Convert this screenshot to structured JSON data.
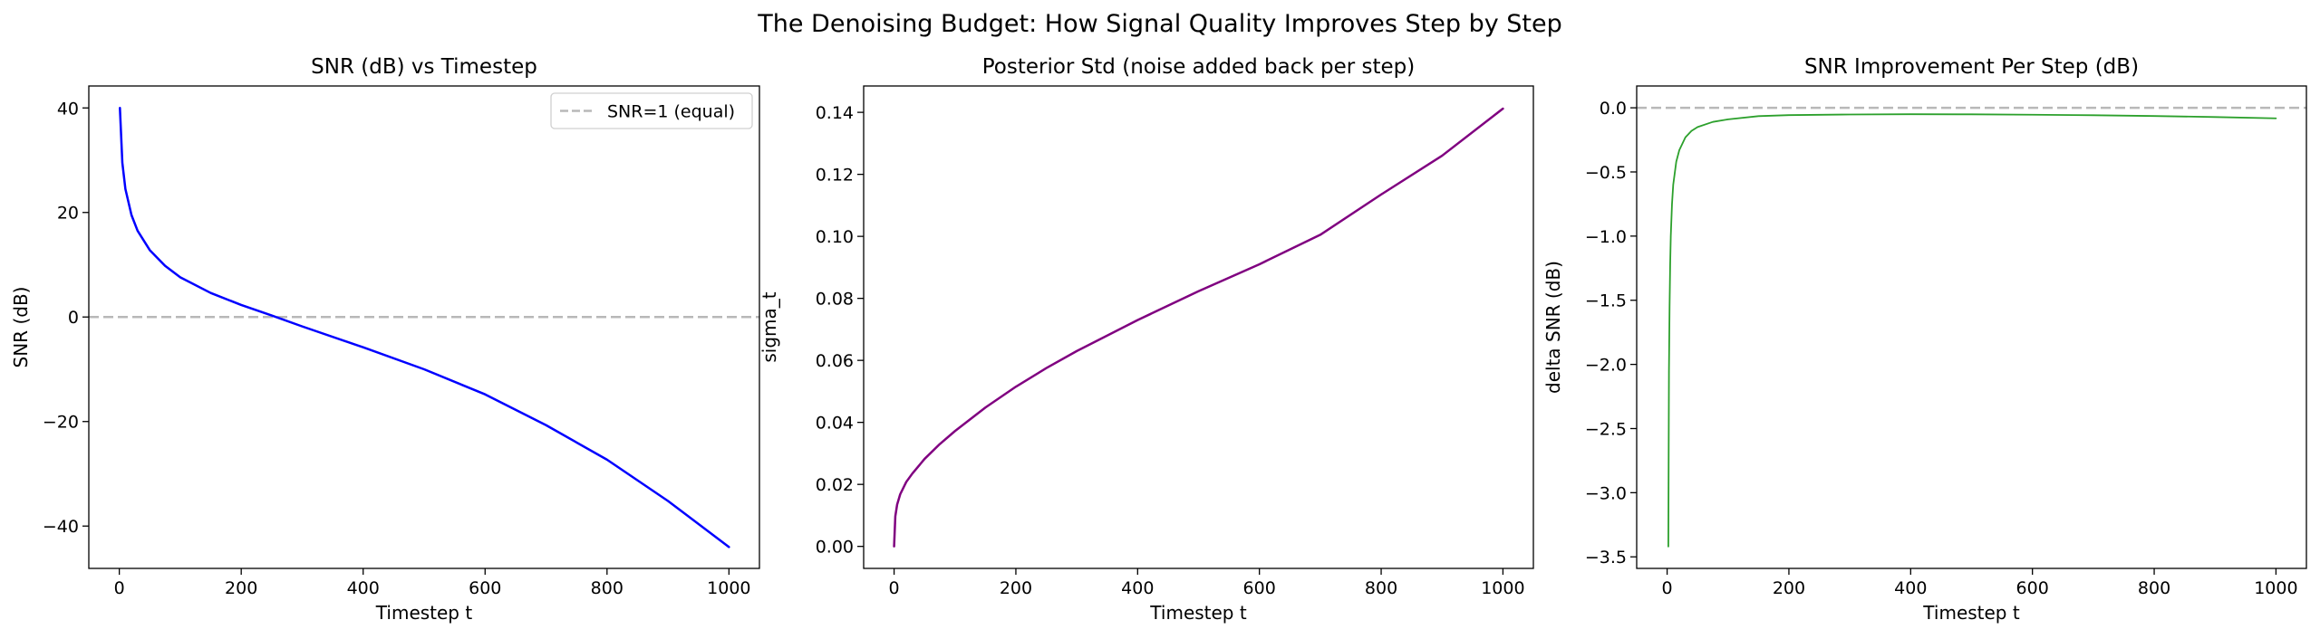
{
  "suptitle": "The Denoising Budget: How Signal Quality Improves Step by Step",
  "chart_data": [
    {
      "type": "line",
      "title": "SNR (dB) vs Timestep",
      "xlabel": "Timestep t",
      "ylabel": "SNR (dB)",
      "xlim": [
        -50,
        1050
      ],
      "ylim": [
        -48.1,
        44.2
      ],
      "xticks": [
        0,
        200,
        400,
        600,
        800,
        1000
      ],
      "yticks": [
        -40,
        -20,
        0,
        20,
        40
      ],
      "ytick_decimals": 0,
      "grid": false,
      "legend": {
        "placement": "top-right",
        "entries": [
          "SNR=1 (equal)"
        ]
      },
      "hlines": [
        {
          "y": 0,
          "color": "#b8b8b8",
          "dashed": true,
          "label": "SNR=1 (equal)"
        }
      ],
      "series": [
        {
          "color": "#0000ff",
          "width": 2.5,
          "x": [
            1,
            5,
            10,
            20,
            30,
            50,
            75,
            100,
            150,
            200,
            250,
            300,
            400,
            500,
            600,
            700,
            800,
            900,
            1000
          ],
          "y": [
            40,
            29.5,
            24.5,
            19.5,
            16.5,
            12.8,
            9.8,
            7.6,
            4.6,
            2.3,
            0.3,
            -1.8,
            -5.8,
            -10,
            -14.8,
            -20.7,
            -27.3,
            -35.2,
            -44
          ]
        }
      ]
    },
    {
      "type": "line",
      "title": "Posterior Std (noise added back per step)",
      "xlabel": "Timestep t",
      "ylabel": "sigma_t",
      "xlim": [
        -50,
        1050
      ],
      "ylim": [
        -0.0071,
        0.1485
      ],
      "xticks": [
        0,
        200,
        400,
        600,
        800,
        1000
      ],
      "yticks": [
        0,
        0.02,
        0.04,
        0.06,
        0.08,
        0.1,
        0.12,
        0.14
      ],
      "ytick_decimals": 2,
      "grid": false,
      "series": [
        {
          "color": "#800080",
          "width": 2.5,
          "x": [
            0,
            2,
            5,
            10,
            20,
            30,
            50,
            75,
            100,
            150,
            200,
            250,
            300,
            400,
            500,
            600,
            700,
            800,
            900,
            1000
          ],
          "y": [
            0,
            0.0097,
            0.0135,
            0.0168,
            0.0208,
            0.0235,
            0.0282,
            0.033,
            0.0372,
            0.0448,
            0.0515,
            0.0575,
            0.063,
            0.073,
            0.0823,
            0.091,
            0.1005,
            0.1135,
            0.126,
            0.1412
          ]
        }
      ]
    },
    {
      "type": "line",
      "title": "SNR Improvement Per Step (dB)",
      "xlabel": "Timestep t",
      "ylabel": "delta SNR (dB)",
      "xlim": [
        -50,
        1050
      ],
      "ylim": [
        -3.59,
        0.17
      ],
      "xticks": [
        0,
        200,
        400,
        600,
        800,
        1000
      ],
      "yticks": [
        -3.5,
        -3,
        -2.5,
        -2,
        -1.5,
        -1,
        -0.5,
        0
      ],
      "ytick_decimals": 1,
      "grid": false,
      "hlines": [
        {
          "y": 0,
          "color": "#b8b8b8",
          "dashed": true
        }
      ],
      "series": [
        {
          "color": "#2ca02c",
          "width": 1.8,
          "x": [
            2,
            3,
            4,
            5,
            6,
            8,
            10,
            15,
            20,
            30,
            40,
            50,
            75,
            100,
            150,
            200,
            300,
            400,
            500,
            600,
            700,
            800,
            900,
            1000
          ],
          "y": [
            -3.42,
            -2.05,
            -1.55,
            -1.22,
            -1.0,
            -0.75,
            -0.6,
            -0.42,
            -0.33,
            -0.23,
            -0.18,
            -0.15,
            -0.11,
            -0.09,
            -0.065,
            -0.057,
            -0.052,
            -0.05,
            -0.051,
            -0.054,
            -0.058,
            -0.064,
            -0.072,
            -0.082
          ]
        }
      ]
    }
  ]
}
